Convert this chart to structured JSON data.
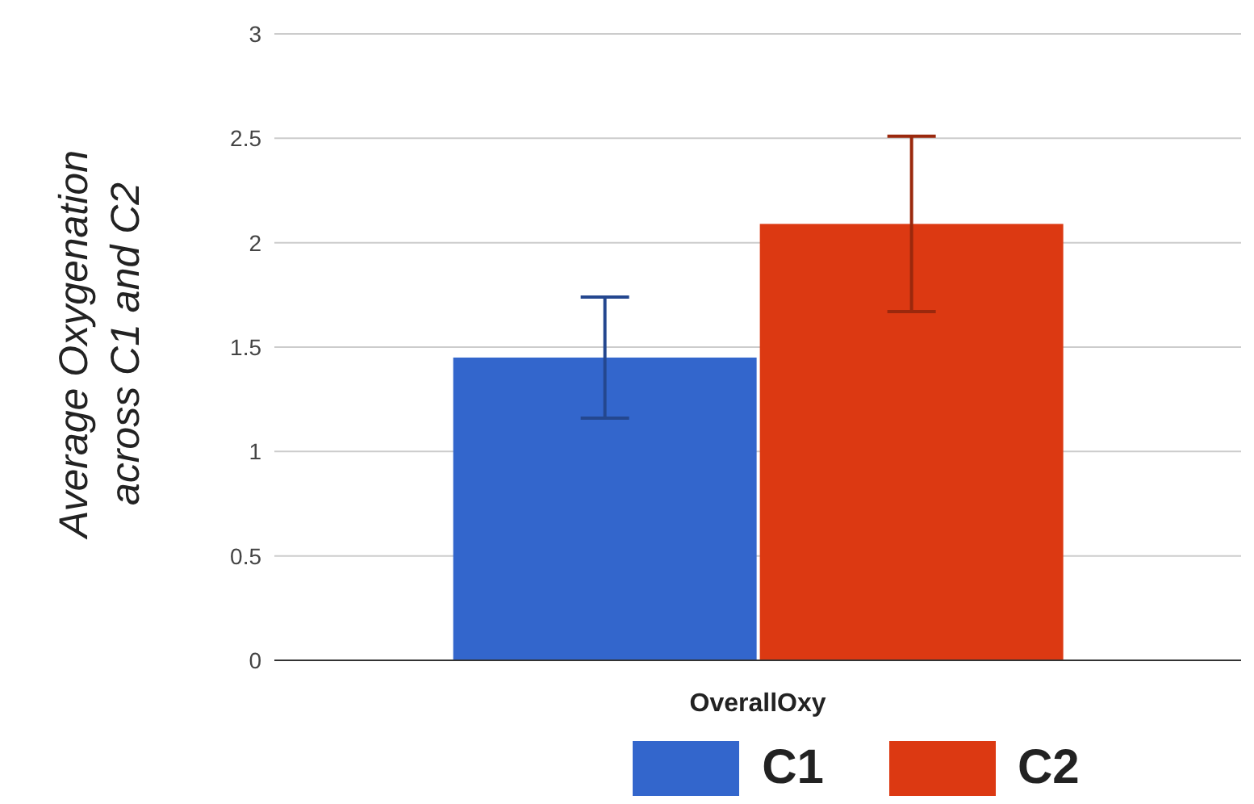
{
  "chart_data": {
    "type": "bar",
    "ylabel": "Average Oxygenation across C1 and C2",
    "categories": [
      "OverallOxy"
    ],
    "series": [
      {
        "name": "C1",
        "color": "#3366cc",
        "values": [
          1.45
        ],
        "errors": [
          0.29
        ]
      },
      {
        "name": "C2",
        "color": "#dc3912",
        "values": [
          2.09
        ],
        "errors": [
          0.42
        ]
      }
    ],
    "ylim": [
      0,
      3
    ],
    "yticks": [
      0,
      0.5,
      1,
      1.5,
      2,
      2.5,
      3
    ],
    "grid": "y",
    "legend": "bottom"
  }
}
